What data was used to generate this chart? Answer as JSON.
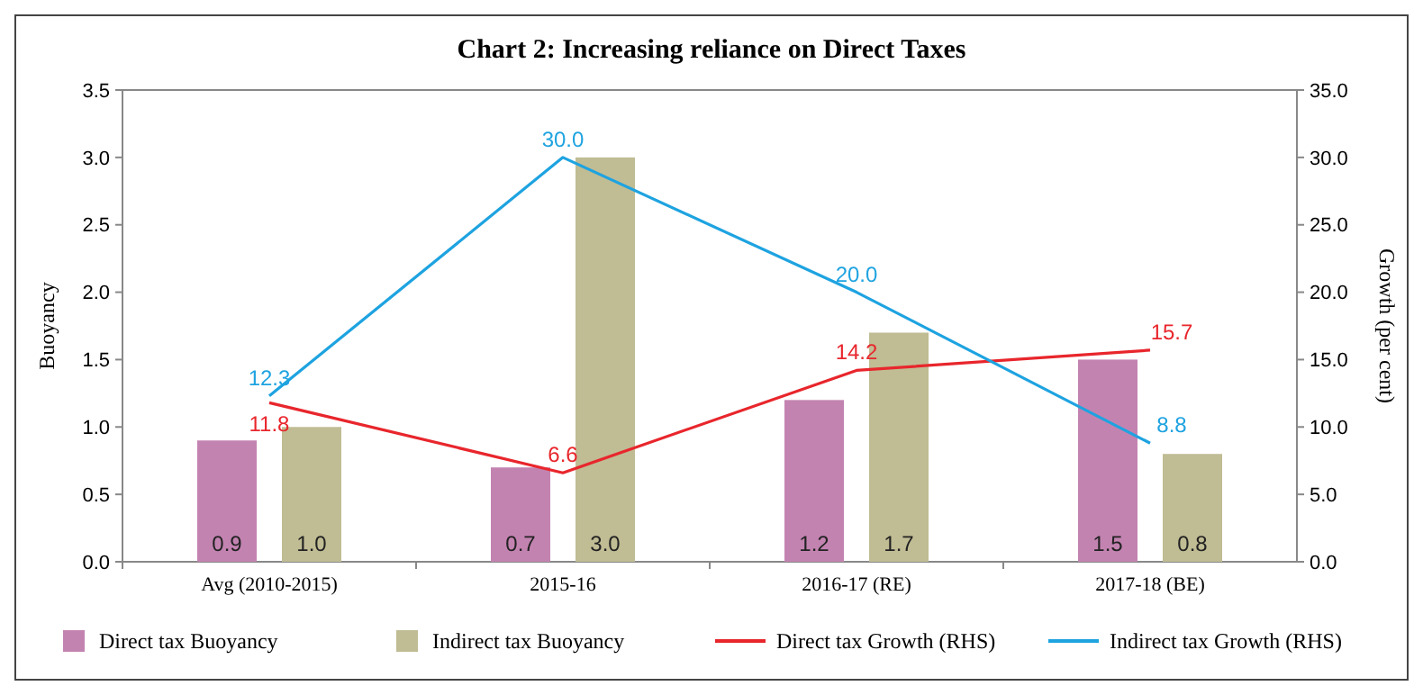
{
  "chart_data": {
    "type": "bar",
    "title": "Chart 2: Increasing reliance on Direct Taxes",
    "ylabel": "Buoyancy",
    "y2label": "Growth (per cent)",
    "categories": [
      "Avg (2010-2015)",
      "2015-16",
      "2016-17 (RE)",
      "2017-18 (BE)"
    ],
    "series": [
      {
        "name": "Direct tax Buoyancy",
        "color": "#c383b1",
        "values": [
          0.9,
          0.7,
          1.2,
          1.5
        ],
        "value_labels": [
          "0.9",
          "0.7",
          "1.2",
          "1.5"
        ]
      },
      {
        "name": "Indirect tax Buoyancy",
        "color": "#c0bc94",
        "values": [
          1.0,
          3.0,
          1.7,
          0.8
        ],
        "value_labels": [
          "1.0",
          "3.0",
          "1.7",
          "0.8"
        ]
      },
      {
        "name": "Direct tax Growth (RHS)",
        "type": "line",
        "axis": "y2",
        "color": "#e8262c",
        "values": [
          11.8,
          6.6,
          14.2,
          15.7
        ],
        "value_labels": [
          "11.8",
          "6.6",
          "14.2",
          "15.7"
        ]
      },
      {
        "name": "Indirect tax Growth (RHS)",
        "type": "line",
        "axis": "y2",
        "color": "#1ea3e0",
        "values": [
          12.3,
          30.0,
          20.0,
          8.8
        ],
        "value_labels": [
          "12.3",
          "30.0",
          "20.0",
          "8.8"
        ]
      }
    ],
    "ylim": [
      0,
      3.5
    ],
    "yticks": [
      {
        "value": 0,
        "label": "0.0"
      },
      {
        "value": 0.5,
        "label": "0.5"
      },
      {
        "value": 1,
        "label": "1.0"
      },
      {
        "value": 1.5,
        "label": "1.5"
      },
      {
        "value": 2,
        "label": "2.0"
      },
      {
        "value": 2.5,
        "label": "2.5"
      },
      {
        "value": 3,
        "label": "3.0"
      },
      {
        "value": 3.5,
        "label": "3.5"
      }
    ],
    "y2lim": [
      0,
      35
    ],
    "y2ticks": [
      {
        "value": 0,
        "label": "0.0"
      },
      {
        "value": 5,
        "label": "5.0"
      },
      {
        "value": 10,
        "label": "10.0"
      },
      {
        "value": 15,
        "label": "15.0"
      },
      {
        "value": 20,
        "label": "20.0"
      },
      {
        "value": 25,
        "label": "25.0"
      },
      {
        "value": 30,
        "label": "30.0"
      },
      {
        "value": 35,
        "label": "35.0"
      }
    ],
    "legend": "bottom",
    "grid": false
  }
}
